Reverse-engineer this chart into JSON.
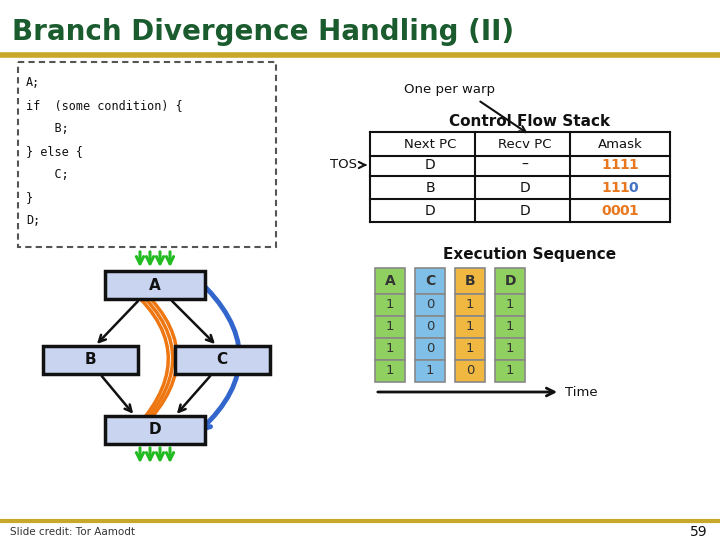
{
  "title": "Branch Divergence Handling (II)",
  "title_color": "#1a5c2e",
  "title_fontsize": 20,
  "separator_color": "#c8a828",
  "bg_color": "#ffffff",
  "code_text": [
    "A;",
    "if  (some condition) {",
    "    B;",
    "} else {",
    "    C;",
    "}",
    "D;"
  ],
  "node_fill": "#c8d4f0",
  "node_border": "#111111",
  "one_per_warp_text": "One per warp",
  "cfs_title": "Control Flow Stack",
  "cfs_headers": [
    "Next PC",
    "Recv PC",
    "Amask"
  ],
  "cfs_rows": [
    [
      "D",
      "–",
      "1111"
    ],
    [
      "B",
      "D",
      "1110"
    ],
    [
      "D",
      "D",
      "0001"
    ]
  ],
  "amask_digit_colors": [
    [
      "#e87820",
      "#e87820",
      "#e87820",
      "#e87820"
    ],
    [
      "#e87820",
      "#e87820",
      "#e87820",
      "#4472c4"
    ],
    [
      "#e87820",
      "#e87820",
      "#e87820",
      "#e87820"
    ]
  ],
  "exec_title": "Execution Sequence",
  "exec_cols": [
    "A",
    "C",
    "B",
    "D"
  ],
  "exec_col_colors": [
    "#90d060",
    "#80c0e8",
    "#f0b840",
    "#90d060"
  ],
  "exec_values": [
    [
      "1",
      "0",
      "1",
      "1"
    ],
    [
      "1",
      "0",
      "1",
      "1"
    ],
    [
      "1",
      "0",
      "1",
      "1"
    ],
    [
      "1",
      "1",
      "0",
      "1"
    ]
  ],
  "slide_credit": "Slide credit: Tor Aamodt",
  "page_number": "59"
}
